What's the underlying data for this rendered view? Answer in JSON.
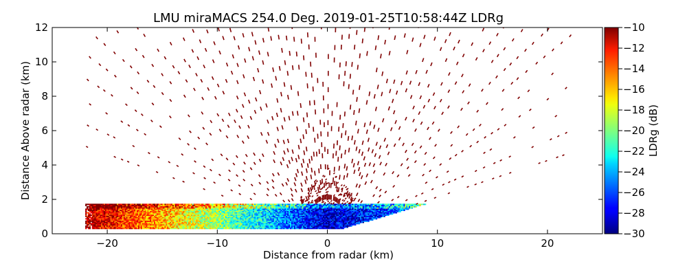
{
  "chart_data": {
    "type": "heatmap",
    "title": "LMU miraMACS 254.0 Deg. 2019-01-25T10:58:44Z  LDRg",
    "xlabel": "Distance from radar (km)",
    "ylabel": "Distance Above radar  (km)",
    "xlim": [
      -25,
      25
    ],
    "ylim": [
      0,
      12
    ],
    "xticks": [
      "−20",
      "−10",
      "0",
      "10",
      "20"
    ],
    "yticks": [
      "0",
      "2",
      "4",
      "6",
      "8",
      "10",
      "12"
    ],
    "colorbar": {
      "label": "LDRg (dB)",
      "range": [
        -30,
        -10
      ],
      "ticks": [
        "−30",
        "−28",
        "−26",
        "−24",
        "−22",
        "−20",
        "−18",
        "−16",
        "−14",
        "−12",
        "−10"
      ],
      "colormap": "jet"
    },
    "scan": {
      "azimuth_deg": 254.0,
      "cloud_layer_top_km": 1.7,
      "cloud_layer_x_range_km": [
        -22,
        9
      ],
      "noise_sector_x_range_km": [
        -22,
        22
      ],
      "noise_max_height_km": 12,
      "noise_ldr_db": -10,
      "cloud_ldr_near_radar_db": -29,
      "cloud_ldr_far_db": -11
    }
  }
}
